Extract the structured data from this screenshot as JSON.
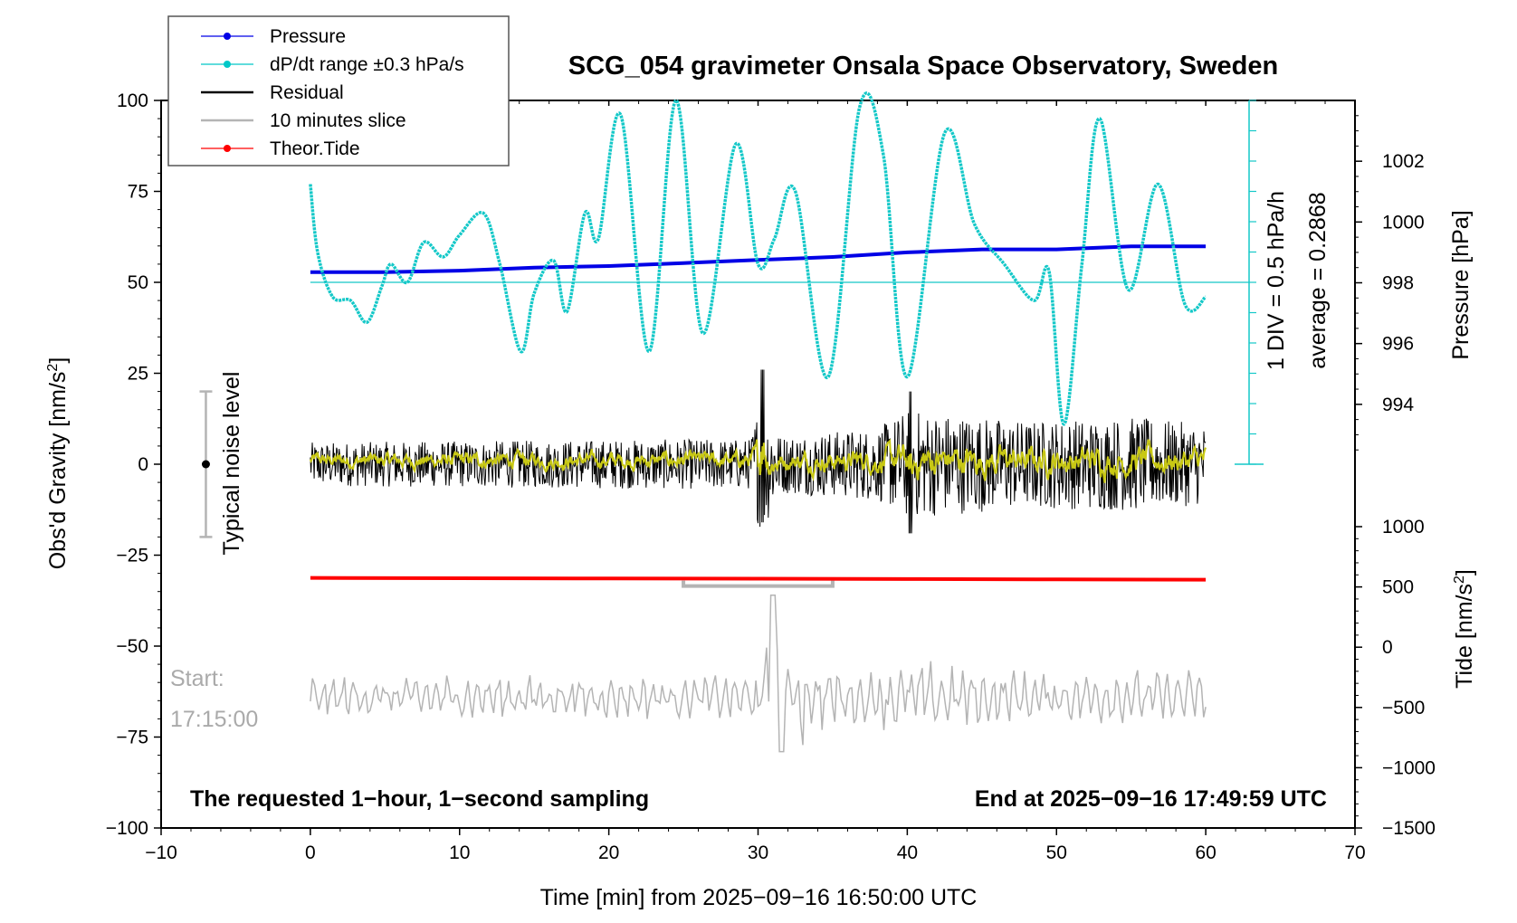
{
  "chart_data": {
    "type": "line",
    "title": "SCG_054 gravimeter Onsala Space Observatory, Sweden",
    "xlabel": "Time [min] from 2025−09−16 16:50:00 UTC",
    "ylabel_left_main": "Obs'd Gravity [nm/s",
    "ylabel_left_sup": "2",
    "ylabel_left_end": "]",
    "ylabel_right_pressure": "Pressure [hPa]",
    "ylabel_right_tide_main": "Tide [nm/s",
    "ylabel_right_tide_sup": "2",
    "ylabel_right_tide_end": "]",
    "xlim": [
      -10,
      70
    ],
    "ylim": [
      -100,
      100
    ],
    "pressure_lim": [
      992,
      1004
    ],
    "tide_lim": [
      -1500,
      1000
    ],
    "x_ticks": [
      {
        "v": -10,
        "t": "−10"
      },
      {
        "v": 0,
        "t": "0"
      },
      {
        "v": 10,
        "t": "10"
      },
      {
        "v": 20,
        "t": "20"
      },
      {
        "v": 30,
        "t": "30"
      },
      {
        "v": 40,
        "t": "40"
      },
      {
        "v": 50,
        "t": "50"
      },
      {
        "v": 60,
        "t": "60"
      },
      {
        "v": 70,
        "t": "70"
      }
    ],
    "y_ticks": [
      {
        "v": 100,
        "t": "100"
      },
      {
        "v": 75,
        "t": "75"
      },
      {
        "v": 50,
        "t": "50"
      },
      {
        "v": 25,
        "t": "25"
      },
      {
        "v": 0,
        "t": "0"
      },
      {
        "v": -25,
        "t": "−25"
      },
      {
        "v": -50,
        "t": "−50"
      },
      {
        "v": -75,
        "t": "−75"
      },
      {
        "v": -100,
        "t": "−100"
      }
    ],
    "pressure_ticks": [
      {
        "v": 1002,
        "t": "1002"
      },
      {
        "v": 1000,
        "t": "1000"
      },
      {
        "v": 998,
        "t": "998"
      },
      {
        "v": 996,
        "t": "996"
      },
      {
        "v": 994,
        "t": "994"
      }
    ],
    "tide_ticks": [
      {
        "v": 1000,
        "t": "1000"
      },
      {
        "v": 500,
        "t": "500"
      },
      {
        "v": 0,
        "t": "0"
      },
      {
        "v": -500,
        "t": "−500"
      },
      {
        "v": -1000,
        "t": "−1000"
      },
      {
        "v": -1500,
        "t": "−1500"
      }
    ],
    "legend": [
      {
        "label": "Pressure",
        "color": "#0000e6",
        "marker": true
      },
      {
        "label": "dP/dt range ±0.3 hPa/s",
        "color": "#00c8c8",
        "marker": true
      },
      {
        "label": "Residual",
        "color": "#000000",
        "marker": false
      },
      {
        "label": "10 minutes slice",
        "color": "#b4b4b4",
        "marker": false
      },
      {
        "label": "Theor.Tide",
        "color": "#ff0000",
        "marker": true
      }
    ],
    "colors": {
      "pressure": "#0000e6",
      "dpdt": "#14c8c8",
      "residual": "#000000",
      "smooth": "#c8c814",
      "slice": "#b4b4b4",
      "tide": "#ff0000",
      "noise_bar": "#b4b4b4"
    },
    "series": [
      {
        "name": "Pressure",
        "axis": "pressure",
        "x": [
          0,
          5,
          10,
          15,
          20,
          25,
          30,
          35,
          40,
          45,
          50,
          55,
          60
        ],
        "y": [
          998.35,
          998.35,
          998.4,
          998.5,
          998.55,
          998.65,
          998.75,
          998.85,
          999.0,
          999.1,
          999.1,
          999.2,
          999.2
        ]
      },
      {
        "name": "dP/dt range ±0.3 hPa/s",
        "axis": "gravity",
        "x": [
          0,
          0.5,
          1.5,
          2.7,
          3.8,
          4.8,
          5.4,
          6.5,
          7.6,
          8.9,
          10.0,
          11.6,
          12.7,
          14.1,
          15.0,
          16.3,
          17.2,
          18.4,
          19.3,
          20.8,
          22.7,
          24.5,
          26.3,
          28.5,
          30.0,
          31.1,
          32.5,
          34.7,
          36.8,
          38.4,
          40.0,
          42.5,
          44.5,
          46.5,
          48.5,
          49.5,
          50.5,
          51.7,
          52.9,
          54.8,
          56.8,
          58.6,
          60.0
        ],
        "y": [
          77,
          58,
          46,
          45,
          39,
          49,
          55,
          50,
          61,
          57,
          63,
          69,
          55,
          31,
          47,
          56,
          42,
          69,
          62,
          96,
          31,
          100,
          36,
          88,
          55,
          62,
          75,
          24,
          98,
          85,
          24,
          91,
          66,
          55,
          45,
          53,
          11,
          55,
          95,
          48,
          77,
          44,
          46
        ]
      },
      {
        "name": "Residual",
        "axis": "gravity",
        "x_range": [
          0,
          60
        ],
        "amplitude_by_minute": [
          {
            "x": 0,
            "a": 6
          },
          {
            "x": 29.5,
            "a": 7
          },
          {
            "x": 30.2,
            "a": 20
          },
          {
            "x": 31.5,
            "a": 8
          },
          {
            "x": 38,
            "a": 10
          },
          {
            "x": 40,
            "a": 15
          },
          {
            "x": 48,
            "a": 12
          },
          {
            "x": 55,
            "a": 13
          },
          {
            "x": 60,
            "a": 11
          }
        ],
        "range_min": -19,
        "range_max": 26
      },
      {
        "name": "10 minutes slice",
        "axis": "gravity",
        "x_range": [
          0,
          60
        ],
        "base": -64,
        "range_min": -79,
        "range_max": -36,
        "window": [
          25,
          35
        ]
      },
      {
        "name": "Theor.Tide",
        "axis": "tide",
        "x": [
          0,
          10,
          20,
          30,
          40,
          50,
          60
        ],
        "y": [
          575,
          572,
          570,
          568,
          565,
          562,
          560
        ]
      }
    ],
    "annotations": {
      "noise_label": "Typical noise level",
      "noise_range": [
        -20,
        20
      ],
      "noise_x": -7,
      "scale_div": "1 DIV = 0.5 hPa/h",
      "scale_avg": "average = 0.2868",
      "start_label": "Start:",
      "start_time": "17:15:00",
      "note_left": "The requested 1−hour, 1−second sampling",
      "note_right": "End at 2025−09−16 17:49:59 UTC"
    }
  }
}
